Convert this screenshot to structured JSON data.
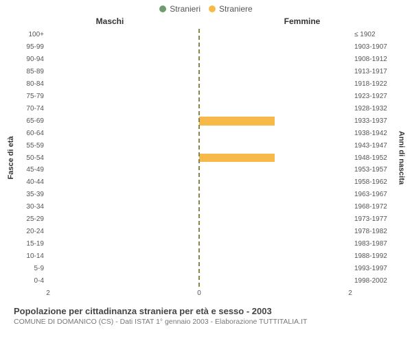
{
  "legend": {
    "male": {
      "label": "Stranieri",
      "color": "#6e9c6e"
    },
    "female": {
      "label": "Straniere",
      "color": "#f6b94a"
    }
  },
  "chart": {
    "type": "population-pyramid",
    "title_left": "Maschi",
    "title_right": "Femmine",
    "axis_left_label": "Fasce di età",
    "axis_right_label": "Anni di nascita",
    "xmax": 2,
    "x_ticks_left": [
      2,
      0
    ],
    "x_ticks_right": [
      2
    ],
    "center_line_color": "#888844",
    "bar_color_male": "#6e9c6e",
    "bar_color_female": "#f6b94a",
    "background_color": "#ffffff",
    "tick_fontsize": 10,
    "rows": [
      {
        "age": "100+",
        "years": "≤ 1902",
        "male": 0,
        "female": 0
      },
      {
        "age": "95-99",
        "years": "1903-1907",
        "male": 0,
        "female": 0
      },
      {
        "age": "90-94",
        "years": "1908-1912",
        "male": 0,
        "female": 0
      },
      {
        "age": "85-89",
        "years": "1913-1917",
        "male": 0,
        "female": 0
      },
      {
        "age": "80-84",
        "years": "1918-1922",
        "male": 0,
        "female": 0
      },
      {
        "age": "75-79",
        "years": "1923-1927",
        "male": 0,
        "female": 0
      },
      {
        "age": "70-74",
        "years": "1928-1932",
        "male": 0,
        "female": 0
      },
      {
        "age": "65-69",
        "years": "1933-1937",
        "male": 0,
        "female": 1
      },
      {
        "age": "60-64",
        "years": "1938-1942",
        "male": 0,
        "female": 0
      },
      {
        "age": "55-59",
        "years": "1943-1947",
        "male": 0,
        "female": 0
      },
      {
        "age": "50-54",
        "years": "1948-1952",
        "male": 0,
        "female": 1
      },
      {
        "age": "45-49",
        "years": "1953-1957",
        "male": 0,
        "female": 0
      },
      {
        "age": "40-44",
        "years": "1958-1962",
        "male": 0,
        "female": 0
      },
      {
        "age": "35-39",
        "years": "1963-1967",
        "male": 0,
        "female": 0
      },
      {
        "age": "30-34",
        "years": "1968-1972",
        "male": 0,
        "female": 0
      },
      {
        "age": "25-29",
        "years": "1973-1977",
        "male": 0,
        "female": 0
      },
      {
        "age": "20-24",
        "years": "1978-1982",
        "male": 0,
        "female": 0
      },
      {
        "age": "15-19",
        "years": "1983-1987",
        "male": 0,
        "female": 0
      },
      {
        "age": "10-14",
        "years": "1988-1992",
        "male": 0,
        "female": 0
      },
      {
        "age": "5-9",
        "years": "1993-1997",
        "male": 0,
        "female": 0
      },
      {
        "age": "0-4",
        "years": "1998-2002",
        "male": 0,
        "female": 0
      }
    ]
  },
  "footer": {
    "title": "Popolazione per cittadinanza straniera per età e sesso - 2003",
    "subtitle": "COMUNE DI DOMANICO (CS) - Dati ISTAT 1° gennaio 2003 - Elaborazione TUTTITALIA.IT"
  }
}
